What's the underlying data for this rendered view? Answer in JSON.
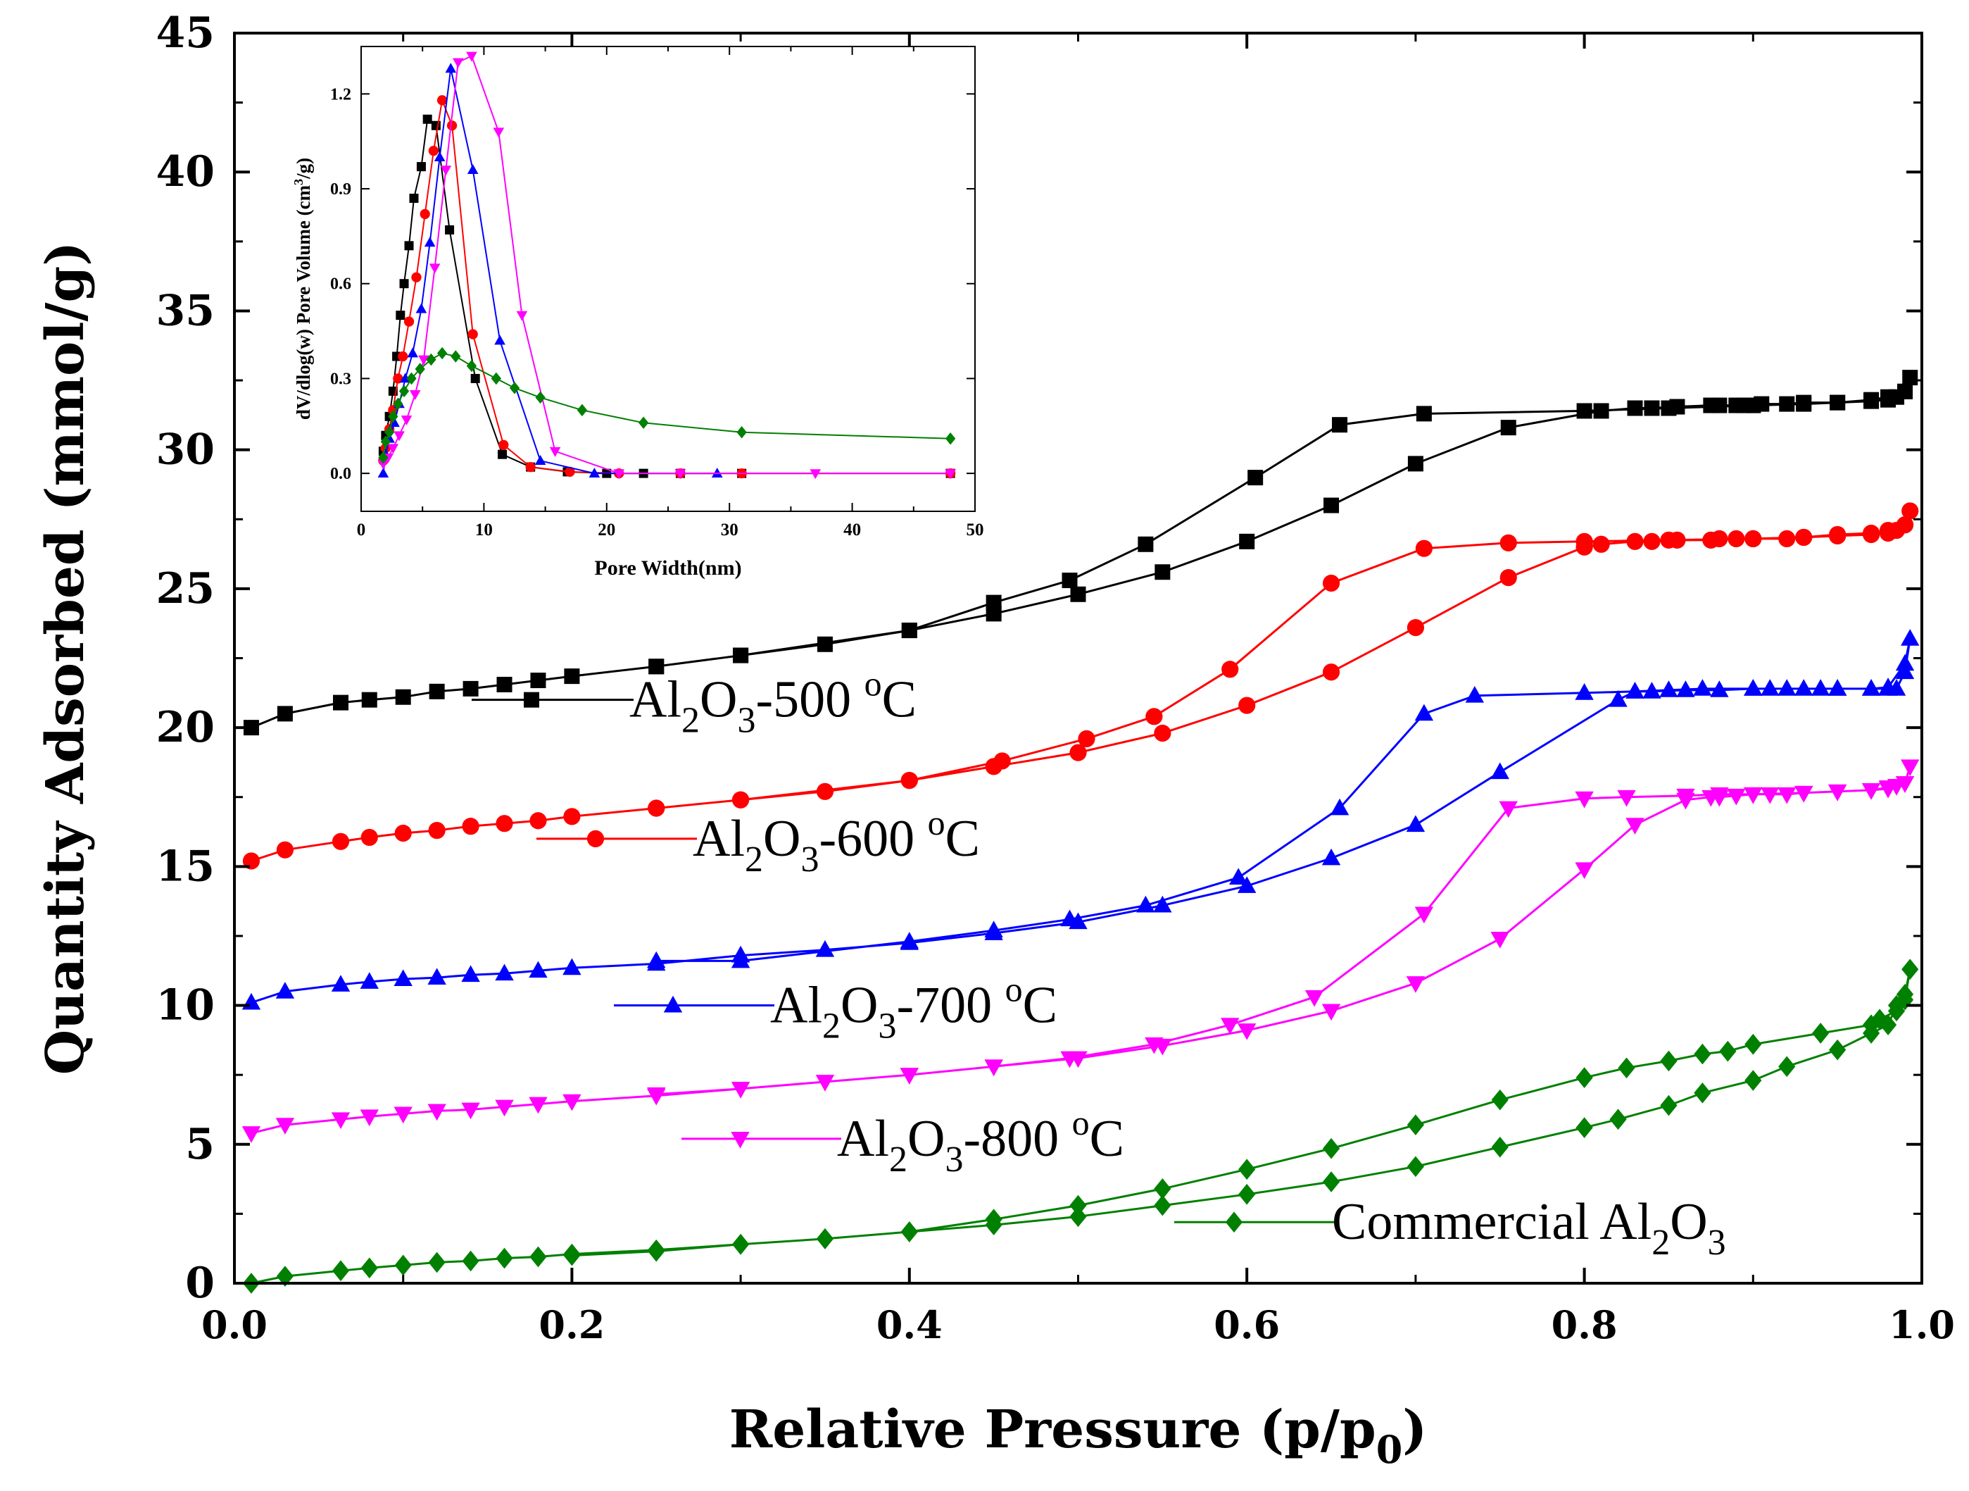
{
  "chart_data": [
    {
      "type": "line",
      "title": "",
      "xlabel": "Relative Pressure (p/p",
      "xlabel_sub": "0",
      "xlabel_end": ")",
      "ylabel": "Quantity Adsorbed (mmol/g)",
      "xlim": [
        0.0,
        1.0
      ],
      "ylim": [
        0,
        45
      ],
      "xticks": [
        0.0,
        0.2,
        0.4,
        0.6,
        0.8,
        1.0
      ],
      "xtick_labels": [
        "0.0",
        "0.2",
        "0.4",
        "0.6",
        "0.8",
        "1.0"
      ],
      "yticks": [
        0,
        5,
        10,
        15,
        20,
        25,
        30,
        35,
        40,
        45
      ],
      "ytick_labels": [
        "0",
        "5",
        "10",
        "15",
        "20",
        "25",
        "30",
        "35",
        "40",
        "45"
      ],
      "grid": false,
      "legend_placement": "inline",
      "series": [
        {
          "name": "Al2O3-500 oC",
          "label_parts": [
            "Al",
            "2",
            "O",
            "3",
            "-500 ",
            "o",
            "C"
          ],
          "color": "#000000",
          "marker": "square",
          "x": [
            0.01,
            0.03,
            0.063,
            0.08,
            0.1,
            0.12,
            0.14,
            0.16,
            0.18,
            0.2,
            0.25,
            0.3,
            0.35,
            0.4,
            0.45,
            0.5,
            0.55,
            0.6,
            0.65,
            0.7,
            0.755,
            0.81,
            0.83,
            0.84,
            0.855,
            0.875,
            0.88,
            0.89,
            0.895,
            0.9,
            0.905,
            0.92,
            0.93,
            0.95,
            0.97,
            0.98,
            0.985,
            0.99,
            0.993,
            0.99,
            0.98,
            0.97,
            0.95,
            0.93,
            0.9,
            0.85,
            0.8,
            0.705,
            0.655,
            0.605,
            0.54,
            0.495,
            0.45,
            0.4,
            0.3,
            0.25
          ],
          "y": [
            20.0,
            20.5,
            20.9,
            21.0,
            21.1,
            21.3,
            21.4,
            21.55,
            21.7,
            21.85,
            22.2,
            22.6,
            23.0,
            23.5,
            24.1,
            24.8,
            25.6,
            26.7,
            28.0,
            29.5,
            30.8,
            31.4,
            31.5,
            31.5,
            31.55,
            31.6,
            31.6,
            31.6,
            31.6,
            31.6,
            31.65,
            31.65,
            31.7,
            31.7,
            31.75,
            31.8,
            31.9,
            32.1,
            32.6,
            32.1,
            31.9,
            31.8,
            31.7,
            31.65,
            31.6,
            31.5,
            31.4,
            31.3,
            30.9,
            29.0,
            26.6,
            25.3,
            24.5,
            23.5,
            22.6,
            22.2
          ]
        },
        {
          "name": "Al2O3-600 oC",
          "label_parts": [
            "Al",
            "2",
            "O",
            "3",
            "-600 ",
            "o",
            "C"
          ],
          "color": "#ff0000",
          "marker": "circle",
          "x": [
            0.01,
            0.03,
            0.063,
            0.08,
            0.1,
            0.12,
            0.14,
            0.16,
            0.18,
            0.2,
            0.25,
            0.3,
            0.35,
            0.4,
            0.45,
            0.5,
            0.55,
            0.6,
            0.65,
            0.7,
            0.755,
            0.8,
            0.81,
            0.83,
            0.84,
            0.855,
            0.875,
            0.88,
            0.89,
            0.9,
            0.92,
            0.93,
            0.95,
            0.97,
            0.98,
            0.985,
            0.99,
            0.993,
            0.99,
            0.98,
            0.97,
            0.95,
            0.93,
            0.9,
            0.85,
            0.8,
            0.755,
            0.705,
            0.65,
            0.59,
            0.545,
            0.505,
            0.455,
            0.4,
            0.3,
            0.25
          ],
          "y": [
            15.2,
            15.6,
            15.9,
            16.05,
            16.2,
            16.3,
            16.45,
            16.55,
            16.65,
            16.8,
            17.1,
            17.4,
            17.7,
            18.1,
            18.6,
            19.1,
            19.8,
            20.8,
            22.0,
            23.6,
            25.4,
            26.5,
            26.6,
            26.7,
            26.7,
            26.75,
            26.75,
            26.8,
            26.8,
            26.8,
            26.8,
            26.85,
            26.9,
            26.95,
            27.0,
            27.1,
            27.3,
            27.8,
            27.3,
            27.1,
            27.0,
            26.95,
            26.85,
            26.8,
            26.75,
            26.7,
            26.65,
            26.45,
            25.2,
            22.1,
            20.4,
            19.6,
            18.8,
            18.1,
            17.4,
            17.1
          ]
        },
        {
          "name": "Al2O3-700 oC",
          "label_parts": [
            "Al",
            "2",
            "O",
            "3",
            "-700 ",
            "o",
            "C"
          ],
          "color": "#0000ff",
          "marker": "triangle-up",
          "x": [
            0.01,
            0.03,
            0.063,
            0.08,
            0.1,
            0.12,
            0.14,
            0.16,
            0.18,
            0.2,
            0.25,
            0.3,
            0.35,
            0.4,
            0.45,
            0.5,
            0.55,
            0.6,
            0.65,
            0.7,
            0.75,
            0.82,
            0.83,
            0.84,
            0.86,
            0.88,
            0.9,
            0.91,
            0.92,
            0.94,
            0.95,
            0.97,
            0.98,
            0.985,
            0.99,
            0.993,
            0.99,
            0.98,
            0.97,
            0.95,
            0.93,
            0.9,
            0.87,
            0.85,
            0.83,
            0.8,
            0.735,
            0.705,
            0.655,
            0.595,
            0.54,
            0.495,
            0.45,
            0.4,
            0.3,
            0.25
          ],
          "y": [
            10.1,
            10.5,
            10.75,
            10.85,
            10.95,
            11.0,
            11.1,
            11.15,
            11.25,
            11.35,
            11.5,
            11.8,
            12.0,
            12.25,
            12.6,
            13.0,
            13.6,
            14.3,
            15.3,
            16.5,
            18.4,
            21.0,
            21.3,
            21.3,
            21.35,
            21.35,
            21.4,
            21.4,
            21.4,
            21.4,
            21.4,
            21.4,
            21.4,
            21.4,
            22.0,
            23.2,
            22.3,
            21.45,
            21.4,
            21.4,
            21.4,
            21.4,
            21.4,
            21.35,
            21.3,
            21.25,
            21.15,
            20.5,
            17.1,
            14.6,
            13.6,
            13.1,
            12.7,
            12.3,
            11.6,
            11.6
          ]
        },
        {
          "name": "Al2O3-800 oC",
          "label_parts": [
            "Al",
            "2",
            "O",
            "3",
            "-800 ",
            "o",
            "C"
          ],
          "color": "#ff00ff",
          "marker": "triangle-down",
          "x": [
            0.01,
            0.03,
            0.063,
            0.08,
            0.1,
            0.12,
            0.14,
            0.16,
            0.18,
            0.2,
            0.25,
            0.3,
            0.35,
            0.4,
            0.45,
            0.5,
            0.55,
            0.6,
            0.65,
            0.7,
            0.75,
            0.8,
            0.83,
            0.86,
            0.875,
            0.88,
            0.89,
            0.9,
            0.91,
            0.92,
            0.93,
            0.95,
            0.97,
            0.98,
            0.985,
            0.99,
            0.993,
            0.99,
            0.98,
            0.97,
            0.95,
            0.93,
            0.9,
            0.88,
            0.86,
            0.825,
            0.8,
            0.755,
            0.705,
            0.64,
            0.59,
            0.545,
            0.495,
            0.45,
            0.4,
            0.3,
            0.25
          ],
          "y": [
            5.4,
            5.7,
            5.9,
            6.0,
            6.1,
            6.2,
            6.25,
            6.35,
            6.45,
            6.55,
            6.75,
            7.0,
            7.25,
            7.5,
            7.8,
            8.1,
            8.55,
            9.1,
            9.8,
            10.8,
            12.4,
            14.9,
            16.5,
            17.4,
            17.5,
            17.5,
            17.55,
            17.6,
            17.6,
            17.6,
            17.65,
            17.7,
            17.75,
            17.8,
            17.9,
            18.0,
            18.6,
            18.0,
            17.85,
            17.75,
            17.7,
            17.65,
            17.6,
            17.6,
            17.55,
            17.5,
            17.45,
            17.1,
            13.3,
            10.3,
            9.3,
            8.6,
            8.1,
            7.8,
            7.5,
            7.0,
            6.8
          ]
        },
        {
          "name": "Commercial Al2O3",
          "label_parts": [
            "Commercial Al",
            "2",
            "O",
            "3",
            "",
            "",
            ""
          ],
          "color": "#008000",
          "marker": "diamond",
          "x": [
            0.01,
            0.03,
            0.063,
            0.08,
            0.1,
            0.12,
            0.14,
            0.16,
            0.18,
            0.2,
            0.25,
            0.3,
            0.35,
            0.4,
            0.45,
            0.5,
            0.55,
            0.6,
            0.65,
            0.7,
            0.75,
            0.8,
            0.82,
            0.85,
            0.87,
            0.9,
            0.92,
            0.95,
            0.97,
            0.98,
            0.985,
            0.99,
            0.993,
            0.99,
            0.985,
            0.975,
            0.97,
            0.94,
            0.9,
            0.885,
            0.87,
            0.85,
            0.825,
            0.8,
            0.75,
            0.7,
            0.65,
            0.6,
            0.55,
            0.5,
            0.45,
            0.4,
            0.35,
            0.3,
            0.25,
            0.2
          ],
          "y": [
            0.0,
            0.25,
            0.45,
            0.55,
            0.65,
            0.75,
            0.8,
            0.9,
            0.95,
            1.05,
            1.2,
            1.4,
            1.6,
            1.85,
            2.1,
            2.4,
            2.8,
            3.2,
            3.65,
            4.2,
            4.9,
            5.6,
            5.9,
            6.4,
            6.85,
            7.3,
            7.8,
            8.4,
            9.0,
            9.3,
            10.0,
            10.4,
            11.3,
            10.2,
            9.8,
            9.5,
            9.3,
            9.0,
            8.6,
            8.35,
            8.25,
            8.0,
            7.75,
            7.4,
            6.6,
            5.7,
            4.85,
            4.1,
            3.4,
            2.8,
            2.3,
            1.85,
            1.6,
            1.4,
            1.15,
            1.0
          ]
        }
      ],
      "legend_anchor_y": [
        21.0,
        16.0,
        10.0,
        5.2,
        2.2
      ]
    },
    {
      "type": "line",
      "title": "",
      "xlabel": "Pore Width(nm)",
      "ylabel_parts": [
        "dV/dlog(w) Pore Volume (cm",
        "3",
        "/g)"
      ],
      "xlim": [
        0,
        50
      ],
      "ylim": [
        -0.12,
        1.35
      ],
      "xticks": [
        0,
        10,
        20,
        30,
        40,
        50
      ],
      "xtick_labels": [
        "0",
        "10",
        "20",
        "30",
        "40",
        "50"
      ],
      "yticks": [
        0.0,
        0.3,
        0.6,
        0.9,
        1.2
      ],
      "ytick_labels": [
        "0.0",
        "0.3",
        "0.6",
        "0.9",
        "1.2"
      ],
      "grid": false,
      "series": [
        {
          "name": "Al2O3-500 oC",
          "color": "#000000",
          "marker": "square",
          "x": [
            1.8,
            2.0,
            2.3,
            2.6,
            2.9,
            3.2,
            3.5,
            3.9,
            4.3,
            4.9,
            5.4,
            6.1,
            7.2,
            9.3,
            11.5,
            13.8,
            16.8,
            20,
            23,
            26,
            31,
            48
          ],
          "y": [
            0.07,
            0.12,
            0.18,
            0.26,
            0.37,
            0.5,
            0.6,
            0.72,
            0.87,
            0.97,
            1.12,
            1.1,
            0.77,
            0.3,
            0.06,
            0.02,
            0.005,
            0.0,
            0.0,
            0.0,
            0.0,
            0.0
          ]
        },
        {
          "name": "Al2O3-600 oC",
          "color": "#ff0000",
          "marker": "circle",
          "x": [
            1.8,
            2.0,
            2.3,
            2.6,
            3.0,
            3.4,
            3.9,
            4.5,
            5.2,
            5.9,
            6.6,
            7.4,
            9.1,
            11.6,
            13.8,
            17.0,
            21.0,
            26.0,
            31.0,
            48.0
          ],
          "y": [
            0.04,
            0.08,
            0.14,
            0.2,
            0.3,
            0.37,
            0.48,
            0.62,
            0.82,
            1.02,
            1.18,
            1.1,
            0.44,
            0.09,
            0.02,
            0.005,
            0.0,
            0.0,
            0.0,
            0.0
          ],
          "dummy": 0
        },
        {
          "name": "Al2O3-700 oC",
          "color": "#0000ff",
          "marker": "triangle-up",
          "x": [
            1.8,
            2.0,
            2.3,
            2.7,
            3.1,
            3.6,
            4.2,
            4.9,
            5.6,
            6.4,
            7.3,
            9.1,
            11.3,
            14.6,
            19.0,
            29.0
          ],
          "y": [
            0.0,
            0.06,
            0.11,
            0.16,
            0.22,
            0.3,
            0.38,
            0.52,
            0.73,
            1.0,
            1.28,
            0.96,
            0.42,
            0.04,
            0.0,
            0.0
          ]
        },
        {
          "name": "Al2O3-800 oC",
          "color": "#ff00ff",
          "marker": "triangle-down",
          "x": [
            1.8,
            2.2,
            2.6,
            3.1,
            3.7,
            4.4,
            5.1,
            6.0,
            6.9,
            7.9,
            9.0,
            11.2,
            13.1,
            15.8,
            21.0,
            26.0,
            37.0,
            48.0
          ],
          "y": [
            0.03,
            0.05,
            0.08,
            0.12,
            0.17,
            0.25,
            0.36,
            0.65,
            0.96,
            1.3,
            1.32,
            1.08,
            0.5,
            0.07,
            0.0,
            0.0,
            0.0,
            0.0
          ]
        },
        {
          "name": "Commercial Al2O3",
          "color": "#008000",
          "marker": "diamond",
          "x": [
            1.8,
            2.0,
            2.3,
            2.6,
            3.0,
            3.5,
            4.1,
            4.8,
            5.7,
            6.6,
            7.7,
            9.0,
            11.0,
            12.5,
            14.6,
            18.0,
            23.0,
            31.0,
            48.0
          ],
          "y": [
            0.05,
            0.1,
            0.13,
            0.18,
            0.22,
            0.26,
            0.3,
            0.33,
            0.36,
            0.38,
            0.37,
            0.34,
            0.3,
            0.27,
            0.24,
            0.2,
            0.16,
            0.13,
            0.11
          ]
        }
      ]
    }
  ]
}
